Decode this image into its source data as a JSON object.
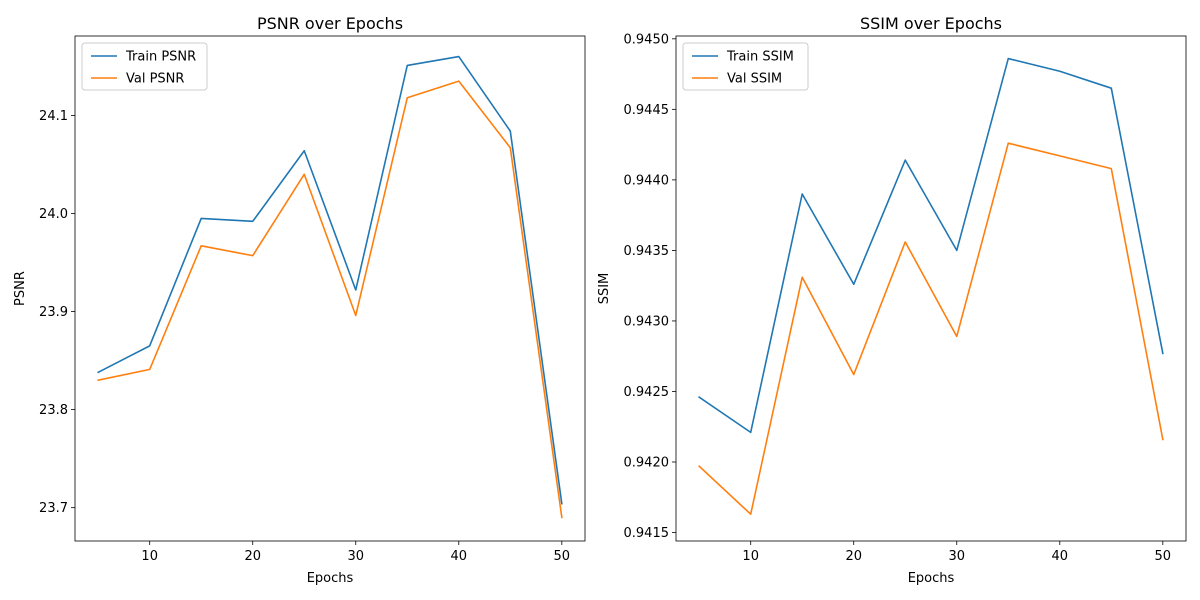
{
  "chart_data": [
    {
      "type": "line",
      "title": "PSNR over Epochs",
      "xlabel": "Epochs",
      "ylabel": "PSNR",
      "x": [
        5,
        10,
        15,
        20,
        25,
        30,
        35,
        40,
        45,
        50
      ],
      "xlim": [
        2.75,
        52.25
      ],
      "ylim": [
        23.666,
        24.181
      ],
      "xticks": [
        10,
        20,
        30,
        40,
        50
      ],
      "yticks": [
        23.7,
        23.8,
        23.9,
        24.0,
        24.1
      ],
      "yticklabels": [
        "23.7",
        "23.8",
        "23.9",
        "24.0",
        "24.1"
      ],
      "grid": false,
      "legend": "upper-left",
      "series": [
        {
          "name": "Train PSNR",
          "color": "#1f77b4",
          "values": [
            23.838,
            23.865,
            23.995,
            23.992,
            24.064,
            23.922,
            24.151,
            24.16,
            24.084,
            23.704
          ]
        },
        {
          "name": "Val PSNR",
          "color": "#ff7f0e",
          "values": [
            23.83,
            23.841,
            23.967,
            23.957,
            24.04,
            23.896,
            24.118,
            24.135,
            24.067,
            23.69
          ]
        }
      ]
    },
    {
      "type": "line",
      "title": "SSIM over Epochs",
      "xlabel": "Epochs",
      "ylabel": "SSIM",
      "x": [
        5,
        10,
        15,
        20,
        25,
        30,
        35,
        40,
        45,
        50
      ],
      "xlim": [
        2.75,
        52.25
      ],
      "ylim": [
        0.94144,
        0.94502
      ],
      "xticks": [
        10,
        20,
        30,
        40,
        50
      ],
      "yticks": [
        0.9415,
        0.942,
        0.9425,
        0.943,
        0.9435,
        0.944,
        0.9445,
        0.945
      ],
      "yticklabels": [
        "0.9415",
        "0.9420",
        "0.9425",
        "0.9430",
        "0.9435",
        "0.9440",
        "0.9445",
        "0.9450"
      ],
      "grid": false,
      "legend": "upper-left",
      "series": [
        {
          "name": "Train SSIM",
          "color": "#1f77b4",
          "values": [
            0.94246,
            0.94221,
            0.9439,
            0.94326,
            0.94414,
            0.9435,
            0.94486,
            0.94477,
            0.94465,
            0.94277
          ]
        },
        {
          "name": "Val SSIM",
          "color": "#ff7f0e",
          "values": [
            0.94197,
            0.94163,
            0.94331,
            0.94262,
            0.94356,
            0.94289,
            0.94426,
            0.94417,
            0.94408,
            0.94216
          ]
        }
      ]
    }
  ]
}
